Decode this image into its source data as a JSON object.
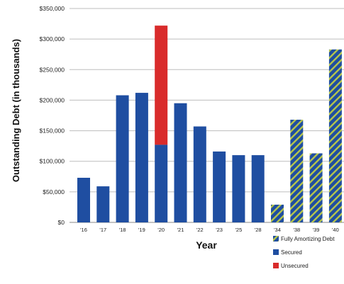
{
  "chart_data": {
    "type": "bar",
    "stacked": true,
    "title": "",
    "xlabel": "Year",
    "ylabel": "Outstanding Debt (in thousands)",
    "ylim": [
      0,
      350000
    ],
    "yticks": [
      0,
      50000,
      100000,
      150000,
      200000,
      250000,
      300000,
      350000
    ],
    "ytick_labels": [
      "$0",
      "$50,000",
      "$100,000",
      "$150,000",
      "$200,000",
      "$250,000",
      "$300,000",
      "$350,000"
    ],
    "grid": true,
    "legend_position": "bottom-right",
    "categories": [
      "'16",
      "'17",
      "'18",
      "'19",
      "'20",
      "'21",
      "'22",
      "'23",
      "'25",
      "'28",
      "'34",
      "'38",
      "'39",
      "'40"
    ],
    "series": [
      {
        "name": "Secured",
        "color": "#1f4ea1",
        "pattern": "solid",
        "values": [
          73000,
          59000,
          208000,
          212000,
          127000,
          195000,
          157000,
          116000,
          110000,
          110000,
          0,
          0,
          0,
          0
        ]
      },
      {
        "name": "Unsecured",
        "color": "#d92b2b",
        "pattern": "solid",
        "values": [
          0,
          0,
          0,
          0,
          195000,
          0,
          0,
          0,
          0,
          0,
          0,
          0,
          0,
          0
        ]
      },
      {
        "name": "Fully Amortizing Debt",
        "color": "#1f4ea1",
        "stripe_color": "#b7c64a",
        "pattern": "diagonal-stripes",
        "values": [
          0,
          0,
          0,
          0,
          0,
          0,
          0,
          0,
          0,
          0,
          29000,
          168000,
          113000,
          283000
        ]
      }
    ],
    "legend": [
      "Fully Amortizing Debt",
      "Secured",
      "Unsecured"
    ]
  }
}
